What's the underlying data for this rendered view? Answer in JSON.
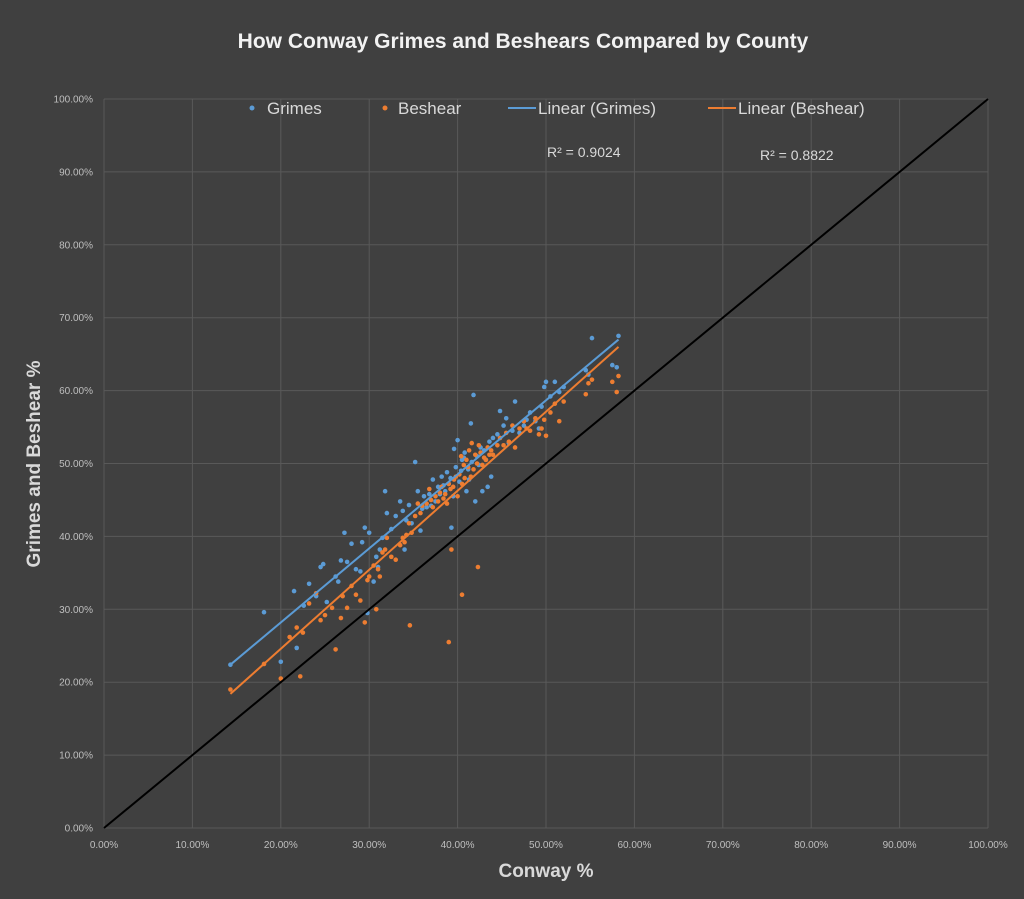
{
  "chart_data": {
    "type": "scatter",
    "title": "How Conway Grimes and Beshears Compared by County",
    "xlabel": "Conway %",
    "ylabel": "Grimes and Beshear %",
    "xlim": [
      0,
      1
    ],
    "ylim": [
      0,
      1
    ],
    "x_ticks": [
      "0.00%",
      "10.00%",
      "20.00%",
      "30.00%",
      "40.00%",
      "50.00%",
      "60.00%",
      "70.00%",
      "80.00%",
      "90.00%",
      "100.00%"
    ],
    "y_ticks": [
      "0.00%",
      "10.00%",
      "20.00%",
      "30.00%",
      "40.00%",
      "50.00%",
      "60.00%",
      "70.00%",
      "80.00%",
      "90.00%",
      "100.00%"
    ],
    "grid": true,
    "legend_position": "top",
    "legend": [
      "Grimes",
      "Beshear",
      "Linear (Grimes)",
      "Linear (Beshear)"
    ],
    "annotations": [
      {
        "text": "R² = 0.9024",
        "series": "Grimes"
      },
      {
        "text": "R² = 0.8822",
        "series": "Beshear"
      }
    ],
    "reference_line": {
      "from": [
        0,
        0
      ],
      "to": [
        1,
        1
      ],
      "color": "#000000"
    },
    "series": [
      {
        "name": "Grimes",
        "color": "#5b9bd5",
        "trendline": {
          "name": "Linear (Grimes)",
          "from": [
            0.143,
            0.224
          ],
          "to": [
            0.582,
            0.67
          ]
        },
        "x": [
          0.143,
          0.181,
          0.2,
          0.215,
          0.218,
          0.226,
          0.232,
          0.24,
          0.245,
          0.248,
          0.252,
          0.262,
          0.265,
          0.268,
          0.272,
          0.275,
          0.28,
          0.285,
          0.29,
          0.292,
          0.295,
          0.298,
          0.3,
          0.305,
          0.308,
          0.31,
          0.312,
          0.315,
          0.318,
          0.32,
          0.325,
          0.33,
          0.335,
          0.338,
          0.34,
          0.342,
          0.345,
          0.348,
          0.352,
          0.355,
          0.358,
          0.36,
          0.362,
          0.365,
          0.368,
          0.37,
          0.372,
          0.375,
          0.378,
          0.38,
          0.382,
          0.384,
          0.386,
          0.388,
          0.39,
          0.392,
          0.393,
          0.395,
          0.396,
          0.398,
          0.4,
          0.402,
          0.404,
          0.405,
          0.407,
          0.408,
          0.41,
          0.412,
          0.413,
          0.415,
          0.416,
          0.418,
          0.42,
          0.422,
          0.424,
          0.426,
          0.428,
          0.43,
          0.432,
          0.434,
          0.436,
          0.438,
          0.44,
          0.445,
          0.448,
          0.452,
          0.455,
          0.458,
          0.462,
          0.465,
          0.47,
          0.475,
          0.478,
          0.482,
          0.488,
          0.492,
          0.495,
          0.498,
          0.5,
          0.505,
          0.51,
          0.515,
          0.52,
          0.545,
          0.548,
          0.552,
          0.575,
          0.58,
          0.582
        ],
        "y": [
          0.224,
          0.296,
          0.228,
          0.325,
          0.247,
          0.305,
          0.335,
          0.318,
          0.358,
          0.362,
          0.31,
          0.345,
          0.338,
          0.367,
          0.405,
          0.365,
          0.39,
          0.355,
          0.352,
          0.392,
          0.412,
          0.295,
          0.405,
          0.338,
          0.372,
          0.358,
          0.382,
          0.398,
          0.462,
          0.432,
          0.41,
          0.428,
          0.448,
          0.435,
          0.382,
          0.422,
          0.443,
          0.418,
          0.502,
          0.462,
          0.408,
          0.438,
          0.455,
          0.44,
          0.458,
          0.442,
          0.478,
          0.448,
          0.468,
          0.458,
          0.482,
          0.47,
          0.462,
          0.488,
          0.472,
          0.48,
          0.412,
          0.455,
          0.52,
          0.495,
          0.532,
          0.475,
          0.49,
          0.505,
          0.508,
          0.515,
          0.462,
          0.492,
          0.478,
          0.555,
          0.502,
          0.594,
          0.448,
          0.51,
          0.498,
          0.522,
          0.462,
          0.518,
          0.505,
          0.468,
          0.53,
          0.482,
          0.535,
          0.54,
          0.572,
          0.552,
          0.562,
          0.528,
          0.545,
          0.585,
          0.542,
          0.552,
          0.56,
          0.57,
          0.558,
          0.548,
          0.578,
          0.605,
          0.612,
          0.592,
          0.612,
          0.598,
          0.605,
          0.628,
          0.622,
          0.672,
          0.635,
          0.632,
          0.675
        ]
      },
      {
        "name": "Beshear",
        "color": "#ed7d31",
        "trendline": {
          "name": "Linear (Beshear)",
          "from": [
            0.143,
            0.184
          ],
          "to": [
            0.582,
            0.66
          ]
        },
        "x": [
          0.143,
          0.181,
          0.2,
          0.21,
          0.218,
          0.222,
          0.225,
          0.232,
          0.24,
          0.245,
          0.25,
          0.258,
          0.262,
          0.268,
          0.27,
          0.275,
          0.28,
          0.285,
          0.29,
          0.295,
          0.298,
          0.3,
          0.305,
          0.308,
          0.31,
          0.312,
          0.315,
          0.318,
          0.32,
          0.325,
          0.33,
          0.335,
          0.338,
          0.34,
          0.342,
          0.345,
          0.348,
          0.352,
          0.355,
          0.358,
          0.36,
          0.365,
          0.368,
          0.37,
          0.372,
          0.375,
          0.378,
          0.38,
          0.382,
          0.384,
          0.386,
          0.388,
          0.39,
          0.392,
          0.393,
          0.395,
          0.396,
          0.398,
          0.4,
          0.402,
          0.404,
          0.405,
          0.407,
          0.408,
          0.41,
          0.412,
          0.413,
          0.415,
          0.416,
          0.418,
          0.42,
          0.422,
          0.424,
          0.426,
          0.428,
          0.43,
          0.432,
          0.434,
          0.436,
          0.438,
          0.44,
          0.445,
          0.448,
          0.452,
          0.455,
          0.458,
          0.462,
          0.465,
          0.47,
          0.475,
          0.478,
          0.482,
          0.488,
          0.492,
          0.495,
          0.498,
          0.5,
          0.505,
          0.51,
          0.515,
          0.52,
          0.545,
          0.548,
          0.552,
          0.575,
          0.58,
          0.582,
          0.405,
          0.423,
          0.346,
          0.39
        ],
        "y": [
          0.19,
          0.225,
          0.205,
          0.262,
          0.275,
          0.208,
          0.268,
          0.308,
          0.322,
          0.285,
          0.292,
          0.302,
          0.245,
          0.288,
          0.318,
          0.302,
          0.332,
          0.32,
          0.312,
          0.282,
          0.34,
          0.345,
          0.36,
          0.3,
          0.355,
          0.345,
          0.378,
          0.382,
          0.398,
          0.372,
          0.368,
          0.388,
          0.398,
          0.392,
          0.402,
          0.418,
          0.405,
          0.428,
          0.445,
          0.432,
          0.442,
          0.445,
          0.465,
          0.45,
          0.44,
          0.455,
          0.448,
          0.46,
          0.468,
          0.452,
          0.458,
          0.445,
          0.472,
          0.465,
          0.382,
          0.468,
          0.478,
          0.482,
          0.455,
          0.485,
          0.51,
          0.472,
          0.498,
          0.48,
          0.505,
          0.495,
          0.518,
          0.482,
          0.528,
          0.492,
          0.512,
          0.5,
          0.525,
          0.515,
          0.498,
          0.508,
          0.505,
          0.522,
          0.512,
          0.518,
          0.512,
          0.525,
          0.535,
          0.525,
          0.542,
          0.53,
          0.552,
          0.522,
          0.548,
          0.558,
          0.548,
          0.545,
          0.562,
          0.54,
          0.548,
          0.56,
          0.538,
          0.57,
          0.582,
          0.558,
          0.585,
          0.595,
          0.61,
          0.615,
          0.612,
          0.598,
          0.62,
          0.32,
          0.358,
          0.278,
          0.255
        ]
      }
    ]
  }
}
